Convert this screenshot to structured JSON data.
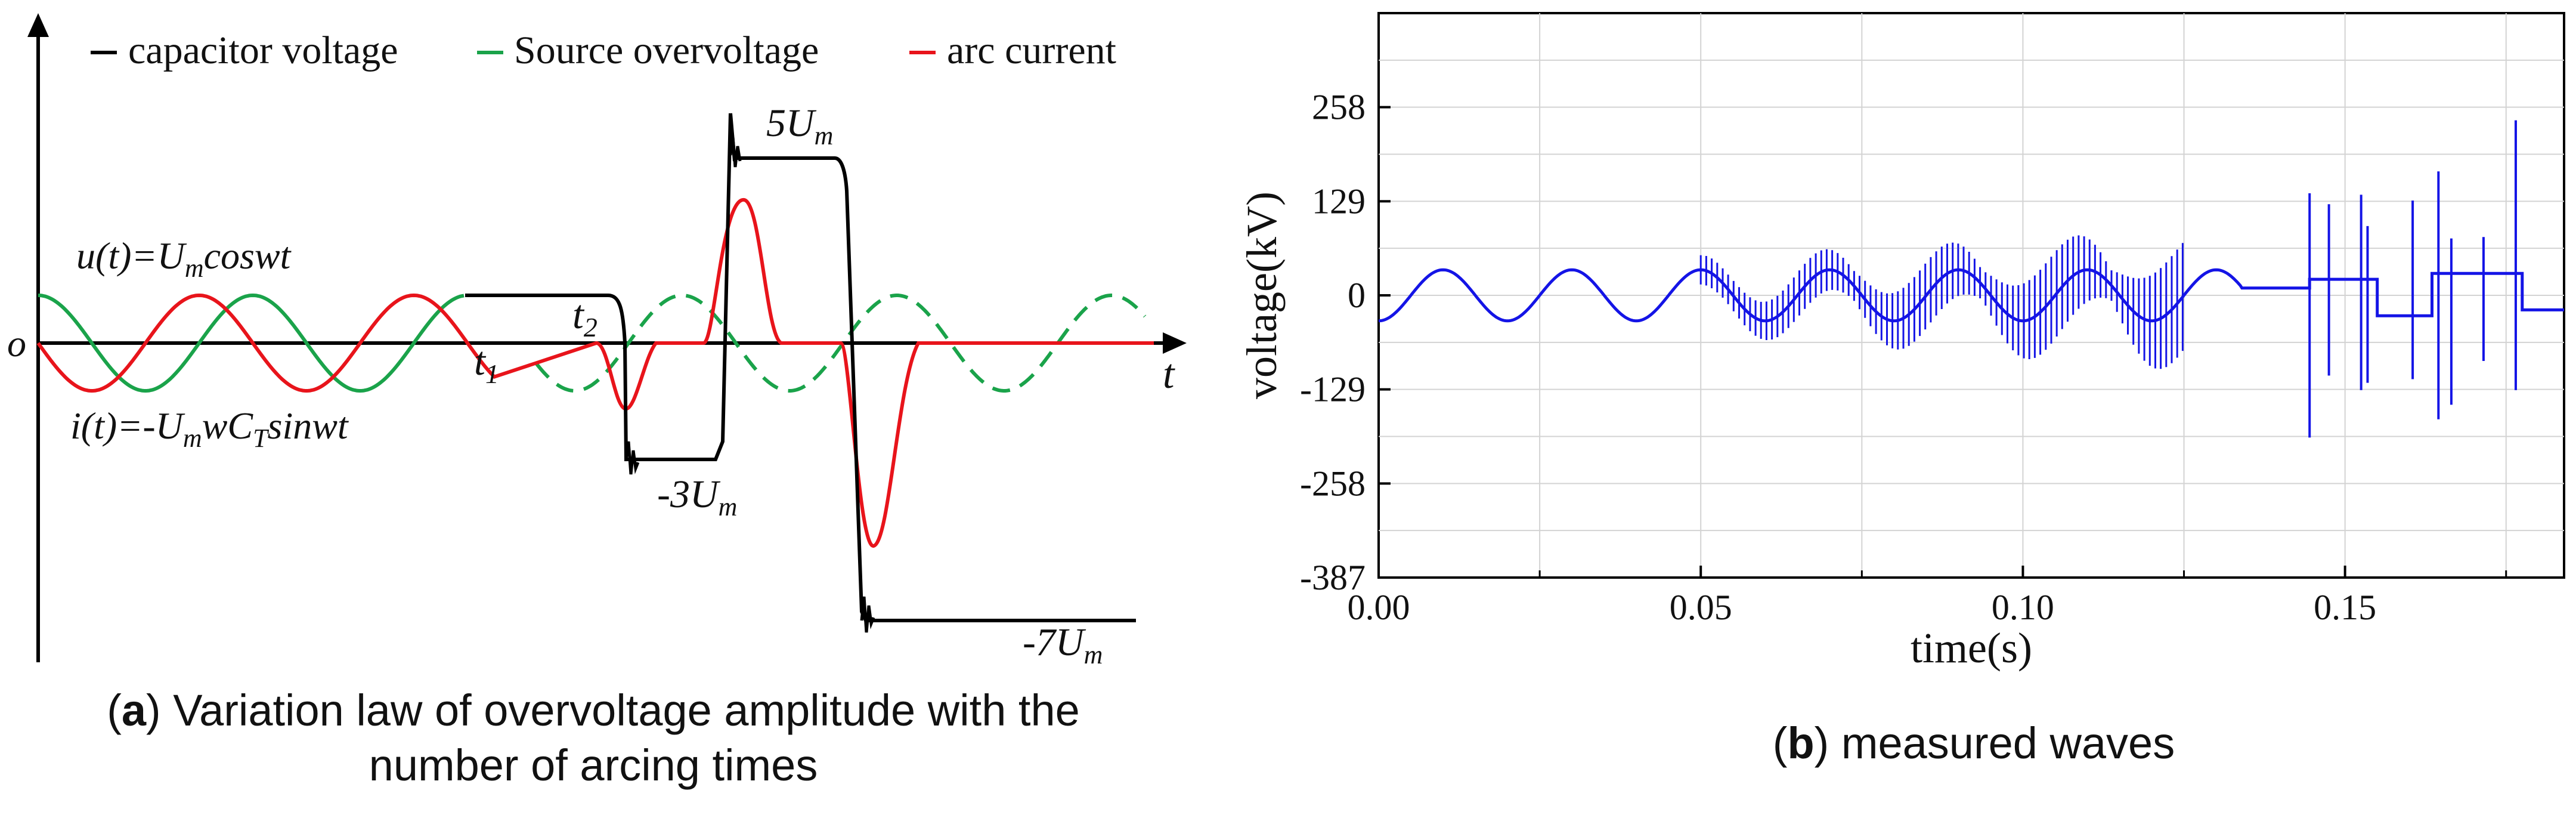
{
  "panel_a": {
    "legend": [
      {
        "label": "capacitor voltage",
        "color": "#000000"
      },
      {
        "label": "Source overvoltage",
        "color": "#1aa34a"
      },
      {
        "label": "arc current",
        "color": "#e8141b"
      }
    ],
    "formula_u": "u(t)=Umcoswt",
    "formula_i": "i(t)=-UmwCTsinwt",
    "origin": "o",
    "t_axis": "t",
    "t1": "t1",
    "t2": "t2",
    "label_5um": "5Um",
    "label_m3um": "-3Um",
    "label_m7um": "-7Um",
    "caption_letter": "a",
    "caption_text": ") Variation law of overvoltage amplitude with the",
    "caption_text2": "number of arcing times",
    "caption_open": "("
  },
  "panel_b": {
    "caption_open": "(",
    "caption_letter": "b",
    "caption_text": ") measured waves",
    "line_color": "#1414e6"
  },
  "chart_data": [
    {
      "type": "line",
      "title": "",
      "xlabel": "",
      "ylabel": "",
      "series": [
        {
          "name": "capacitor voltage",
          "color": "#000000"
        },
        {
          "name": "Source overvoltage",
          "color": "#1aa34a"
        },
        {
          "name": "arc current",
          "color": "#e8141b"
        }
      ],
      "annotations": [
        "u(t)=Umcoswt",
        "i(t)=-UmwCTsinwt",
        "t1",
        "t2",
        "5Um",
        "-3Um",
        "-7Um",
        "o",
        "t"
      ]
    },
    {
      "type": "line",
      "title": "",
      "xlabel": "time(s)",
      "ylabel": "voltage(kV)",
      "xlim": [
        0,
        0.184
      ],
      "ylim": [
        -387,
        387
      ],
      "xticks": [
        0.0,
        0.05,
        0.1,
        0.15
      ],
      "xtick_labels": [
        "0.00",
        "0.05",
        "0.10",
        "0.15"
      ],
      "yticks": [
        258,
        129,
        0,
        -129,
        -258,
        -387
      ],
      "ytick_labels": [
        "258",
        "129",
        "0",
        "-129",
        "-258",
        "-387"
      ],
      "grid": true,
      "series": [
        {
          "name": "",
          "description_points": {
            "x": [
              0.0,
              0.005,
              0.01,
              0.015,
              0.02,
              0.025,
              0.03,
              0.035,
              0.04,
              0.045,
              0.05,
              0.055,
              0.06,
              0.065,
              0.07,
              0.075,
              0.08,
              0.085,
              0.09,
              0.095,
              0.1,
              0.105,
              0.11,
              0.115,
              0.12,
              0.125,
              0.13,
              0.135,
              0.14,
              0.145,
              0.15,
              0.155,
              0.16,
              0.165,
              0.17,
              0.175,
              0.18
            ],
            "y": [
              -35,
              0,
              35,
              0,
              -35,
              0,
              35,
              0,
              -35,
              0,
              40,
              0,
              -40,
              0,
              40,
              0,
              -40,
              0,
              40,
              0,
              -35,
              0,
              35,
              0,
              -35,
              0,
              35,
              10,
              10,
              22,
              22,
              -28,
              -28,
              30,
              30,
              -20,
              -20
            ]
          }
        }
      ],
      "spikes": [
        {
          "x": 0.1445,
          "ymin": -195,
          "ymax": 140
        },
        {
          "x": 0.1475,
          "ymin": -110,
          "ymax": 125
        },
        {
          "x": 0.1525,
          "ymin": -130,
          "ymax": 138
        },
        {
          "x": 0.1535,
          "ymin": -120,
          "ymax": 95
        },
        {
          "x": 0.1605,
          "ymin": -115,
          "ymax": 130
        },
        {
          "x": 0.1645,
          "ymin": -170,
          "ymax": 170
        },
        {
          "x": 0.1665,
          "ymin": -150,
          "ymax": 78
        },
        {
          "x": 0.1715,
          "ymin": -90,
          "ymax": 80
        },
        {
          "x": 0.1765,
          "ymin": -130,
          "ymax": 240
        }
      ]
    }
  ]
}
